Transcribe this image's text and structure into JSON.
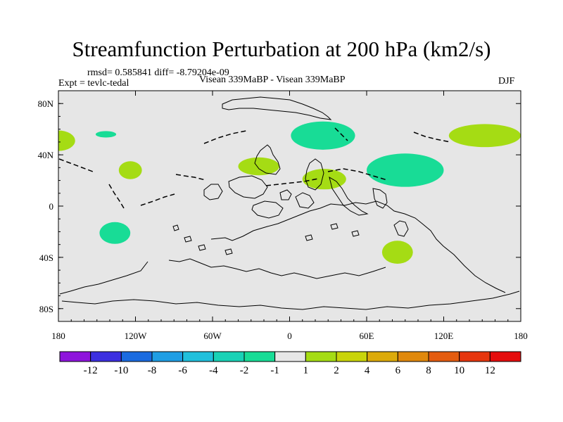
{
  "title": "Streamfunction Perturbation at 200 hPa (km2/s)",
  "rmsd_line": "rmsd= 0.585841 diff= -8.79204e-09",
  "expt_line": "Expt = tevlc-tedal",
  "center_line": "Visean 339MaBP - Visean 339MaBP",
  "season": "DJF",
  "map": {
    "lon_range": [
      -180,
      180
    ],
    "lat_range": [
      -90,
      90
    ],
    "lon_ticks": [
      "180",
      "120W",
      "60W",
      "0",
      "60E",
      "120E",
      "180"
    ],
    "lat_ticks": [
      "80N",
      "40N",
      "0",
      "40S",
      "80S"
    ],
    "background_color": "#e6e6e6",
    "anomalies": [
      {
        "name": "west-edge-positive",
        "lon": -180,
        "lat": 51,
        "rlon": 13,
        "rlat": 8,
        "level": "1 to 2"
      },
      {
        "name": "pacific-small-negative",
        "lon": -143,
        "lat": 56,
        "rlon": 8,
        "rlat": 2.5,
        "level": "-2 to -1"
      },
      {
        "name": "pacific-positive",
        "lon": -124,
        "lat": 28,
        "rlon": 9,
        "rlat": 7,
        "level": "1 to 2"
      },
      {
        "name": "south-pacific-negative",
        "lon": -136,
        "lat": -21,
        "rlon": 12,
        "rlat": 8.5,
        "level": "-2 to -1"
      },
      {
        "name": "north-atlantic-positive",
        "lon": -24,
        "lat": 31,
        "rlon": 16,
        "rlat": 7,
        "level": "1 to 2"
      },
      {
        "name": "arctic-negative",
        "lon": 26,
        "lat": 55,
        "rlon": 25,
        "rlat": 11,
        "level": "-2 to -1"
      },
      {
        "name": "tethys-positive",
        "lon": 27,
        "lat": 21,
        "rlon": 17,
        "rlat": 8,
        "level": "1 to 2"
      },
      {
        "name": "east-asia-negative",
        "lon": 90,
        "lat": 28,
        "rlon": 30,
        "rlat": 13,
        "level": "-2 to -1"
      },
      {
        "name": "north-pacific-positive",
        "lon": 152,
        "lat": 55,
        "rlon": 28,
        "rlat": 9,
        "level": "1 to 2"
      },
      {
        "name": "southern-positive",
        "lon": 84,
        "lat": -36,
        "rlon": 12,
        "rlat": 9,
        "level": "1 to 2"
      }
    ]
  },
  "colorbar": {
    "colors": [
      "#8e14dc",
      "#3c2fe0",
      "#1a6be0",
      "#1f9ee4",
      "#21c0dc",
      "#19d2b6",
      "#18dc96",
      "#e6e6e6",
      "#a5dc14",
      "#c9d40a",
      "#dcaa0a",
      "#e0880c",
      "#e45c10",
      "#e6360e",
      "#e50d0d"
    ],
    "labels": [
      "-12",
      "-10",
      "-8",
      "-6",
      "-4",
      "-2",
      "-1",
      "1",
      "2",
      "4",
      "6",
      "8",
      "10",
      "12"
    ]
  }
}
